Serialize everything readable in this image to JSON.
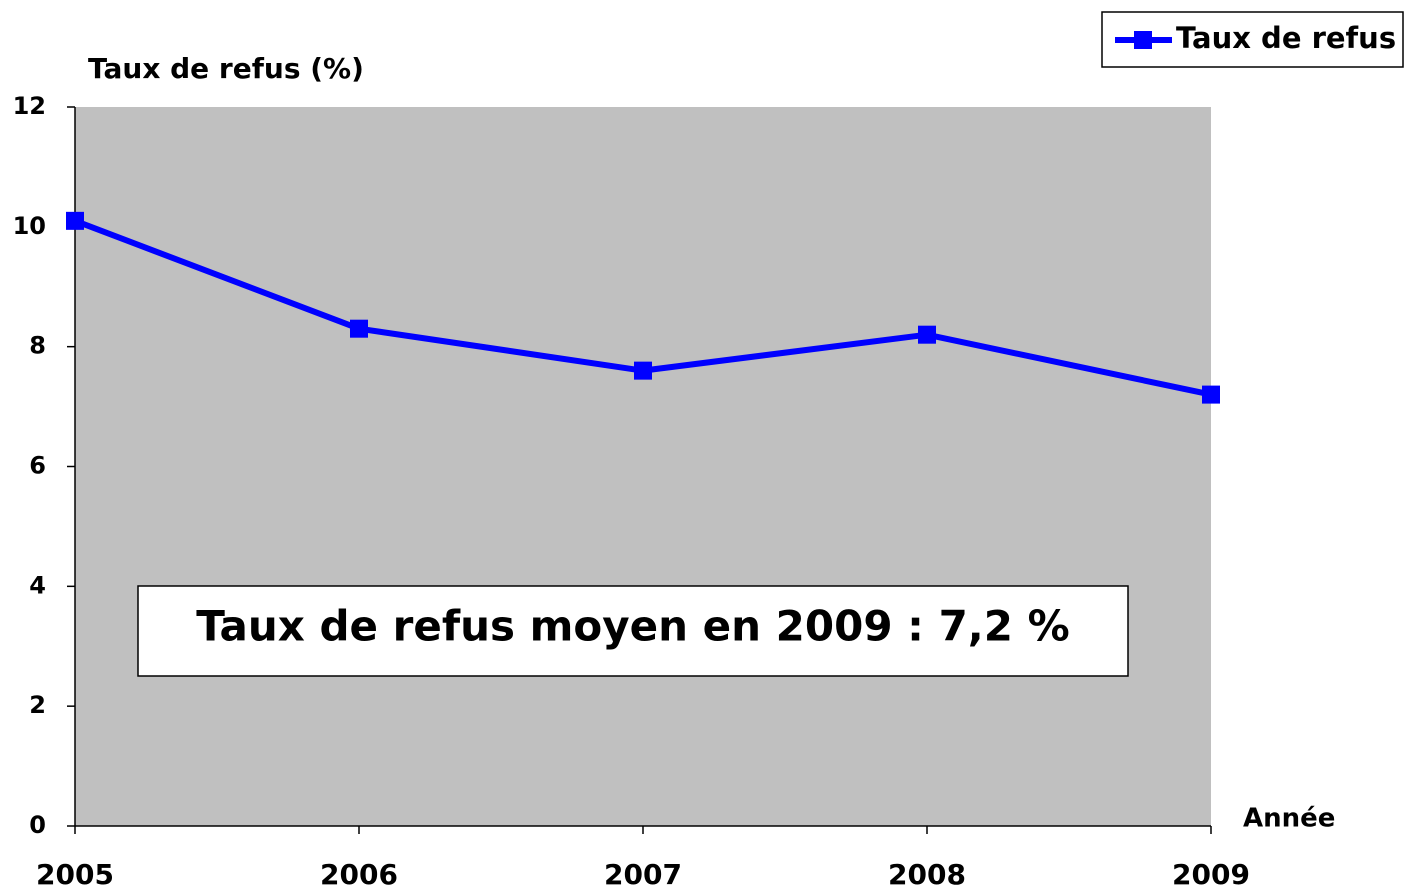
{
  "chart_data": {
    "type": "line",
    "y_label": "Taux de refus (%)",
    "x_label": "Année",
    "categories": [
      "2005",
      "2006",
      "2007",
      "2008",
      "2009"
    ],
    "series": [
      {
        "name": "Taux de refus",
        "color": "#0000ff",
        "values": [
          10.1,
          8.3,
          7.6,
          8.2,
          7.2
        ]
      }
    ],
    "ylim": [
      0,
      12
    ],
    "yticks": [
      0,
      2,
      4,
      6,
      8,
      10,
      12
    ],
    "annotation": "Taux de refus moyen en 2009 : 7,2 %",
    "legend": "upper right",
    "grid": false,
    "plot_background": "#c0c0c0"
  }
}
